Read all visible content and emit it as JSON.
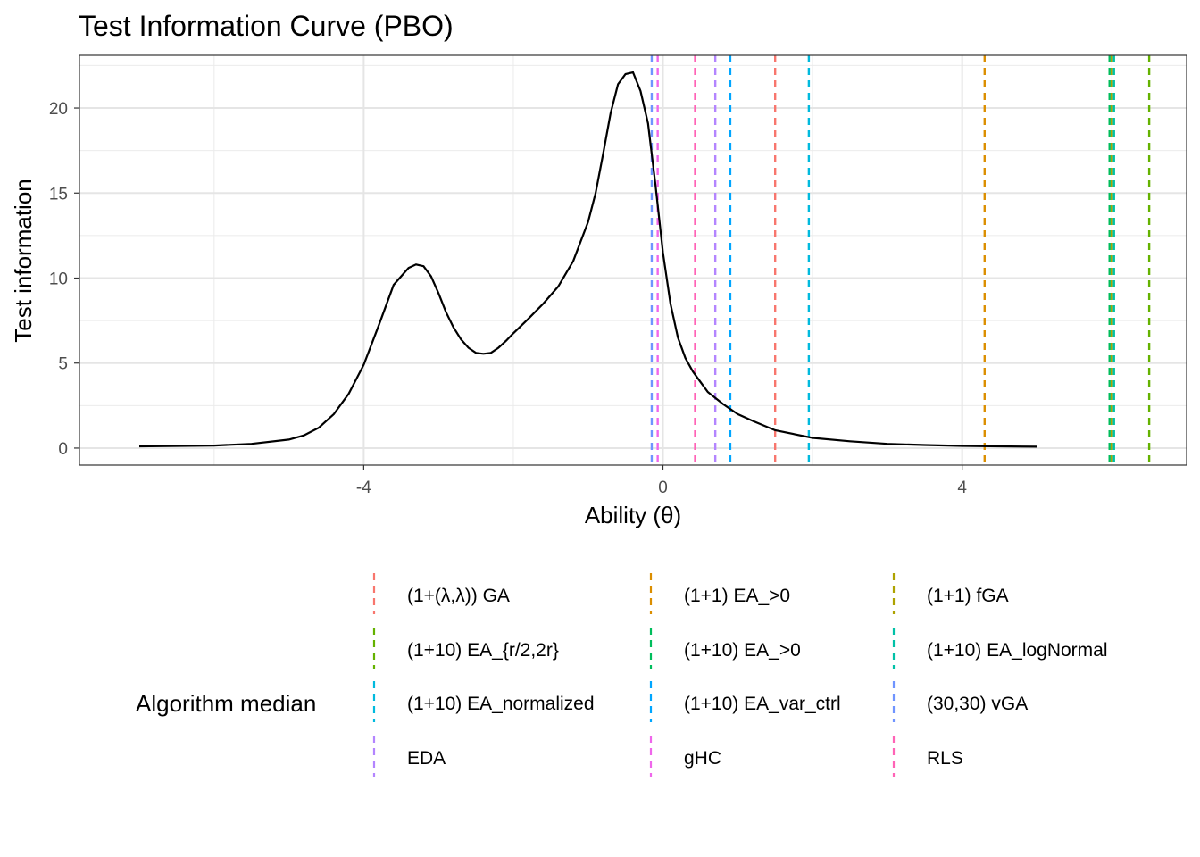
{
  "chart_data": {
    "type": "line",
    "title": "Test Information Curve (PBO)",
    "xlabel": "Ability (θ)",
    "ylabel": "Test information",
    "xlim": [
      -7.8,
      7.0
    ],
    "ylim": [
      -1.0,
      23.1
    ],
    "x_ticks": [
      -4,
      0,
      4
    ],
    "x_minor_ticks": [
      -6,
      -2,
      2,
      6
    ],
    "y_ticks": [
      0,
      5,
      10,
      15,
      20
    ],
    "y_minor_ticks": [
      2.5,
      7.5,
      12.5,
      17.5,
      22.5
    ],
    "grid": true,
    "legend_position": "bottom",
    "legend_title": "Algorithm median",
    "curve": {
      "color": "#000000",
      "x": [
        -7.0,
        -6.0,
        -5.5,
        -5.0,
        -4.8,
        -4.6,
        -4.4,
        -4.2,
        -4.0,
        -3.8,
        -3.6,
        -3.4,
        -3.3,
        -3.2,
        -3.1,
        -3.0,
        -2.9,
        -2.8,
        -2.7,
        -2.6,
        -2.5,
        -2.4,
        -2.3,
        -2.2,
        -2.1,
        -2.0,
        -1.8,
        -1.6,
        -1.4,
        -1.2,
        -1.0,
        -0.9,
        -0.8,
        -0.7,
        -0.6,
        -0.5,
        -0.4,
        -0.3,
        -0.2,
        -0.1,
        0.0,
        0.1,
        0.2,
        0.3,
        0.4,
        0.5,
        0.6,
        0.8,
        1.0,
        1.2,
        1.5,
        2.0,
        2.5,
        3.0,
        3.5,
        4.0,
        4.5,
        5.0
      ],
      "y": [
        0.1,
        0.15,
        0.25,
        0.5,
        0.75,
        1.2,
        2.0,
        3.2,
        4.9,
        7.2,
        9.6,
        10.6,
        10.8,
        10.7,
        10.1,
        9.1,
        8.0,
        7.1,
        6.4,
        5.9,
        5.6,
        5.55,
        5.6,
        5.9,
        6.3,
        6.75,
        7.6,
        8.5,
        9.5,
        11.0,
        13.3,
        15.0,
        17.3,
        19.7,
        21.4,
        22.0,
        22.1,
        21.0,
        19.1,
        15.5,
        11.5,
        8.5,
        6.5,
        5.3,
        4.5,
        3.9,
        3.3,
        2.6,
        2.0,
        1.6,
        1.05,
        0.6,
        0.4,
        0.25,
        0.18,
        0.13,
        0.1,
        0.08
      ]
    },
    "series": [
      {
        "name": "(1+(λ,λ)) GA",
        "median": 1.5,
        "color": "#F8766D"
      },
      {
        "name": "(1+1) EA_>0",
        "median": 4.3,
        "color": "#DB8E00"
      },
      {
        "name": "(1+1) fGA",
        "median": 6.0,
        "color": "#AEA200"
      },
      {
        "name": "(1+10) EA_{r/2,2r}",
        "median": 6.5,
        "color": "#64B200"
      },
      {
        "name": "(1+10) EA_>0",
        "median": 5.97,
        "color": "#00BD5C"
      },
      {
        "name": "(1+10) EA_logNormal",
        "median": 6.03,
        "color": "#00C1A7"
      },
      {
        "name": "(1+10) EA_normalized",
        "median": 1.95,
        "color": "#00BADE"
      },
      {
        "name": "(1+10) EA_var_ctrl",
        "median": 0.9,
        "color": "#00A6FF"
      },
      {
        "name": "(30,30) vGA",
        "median": -0.15,
        "color": "#6F94FF"
      },
      {
        "name": "EDA",
        "median": 0.7,
        "color": "#B385FF"
      },
      {
        "name": "gHC",
        "median": -0.07,
        "color": "#EF67EB"
      },
      {
        "name": "RLS",
        "median": 0.43,
        "color": "#FF63B6"
      }
    ]
  }
}
